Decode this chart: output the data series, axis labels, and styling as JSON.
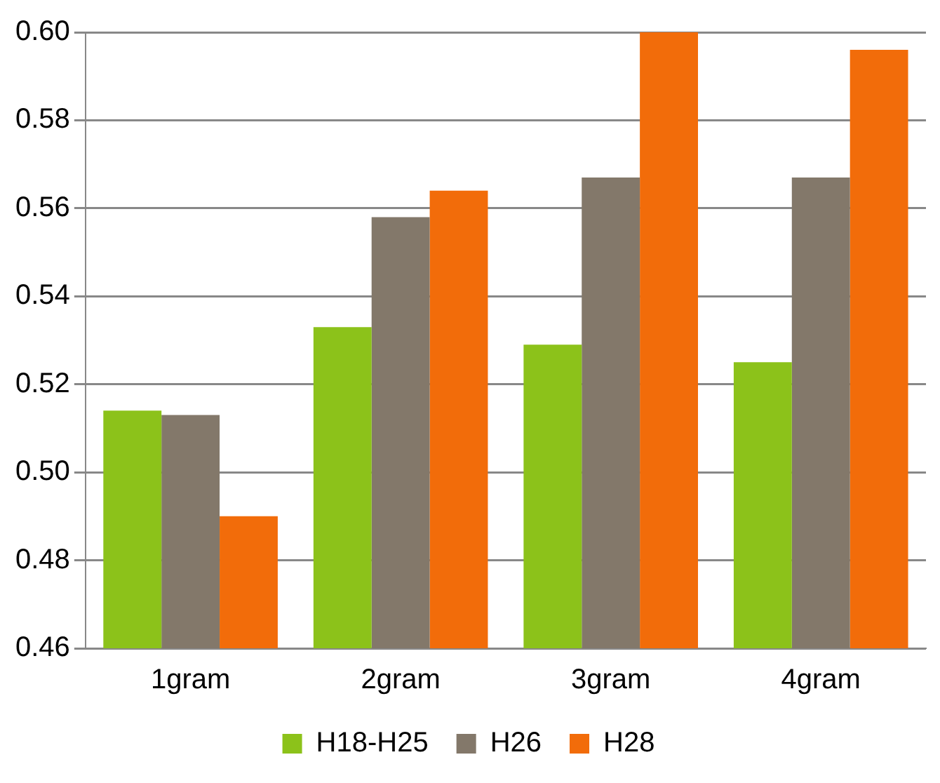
{
  "chart_data": {
    "type": "bar",
    "categories": [
      "1gram",
      "2gram",
      "3gram",
      "4gram"
    ],
    "series": [
      {
        "name": "H18-H25",
        "color": "#8cc21a",
        "values": [
          0.514,
          0.533,
          0.529,
          0.525
        ]
      },
      {
        "name": "H26",
        "color": "#83786a",
        "values": [
          0.513,
          0.558,
          0.567,
          0.567
        ]
      },
      {
        "name": "H28",
        "color": "#f26c0a",
        "values": [
          0.49,
          0.564,
          0.6,
          0.596
        ]
      }
    ],
    "ylim": [
      0.46,
      0.6
    ],
    "yticks": [
      0.46,
      0.48,
      {
        "value": 0.5,
        "label": "0.50"
      },
      0.52,
      0.54,
      0.56,
      0.58,
      {
        "value": 0.6,
        "label": "0.60"
      }
    ],
    "grid": "y",
    "legend": "bottom"
  }
}
